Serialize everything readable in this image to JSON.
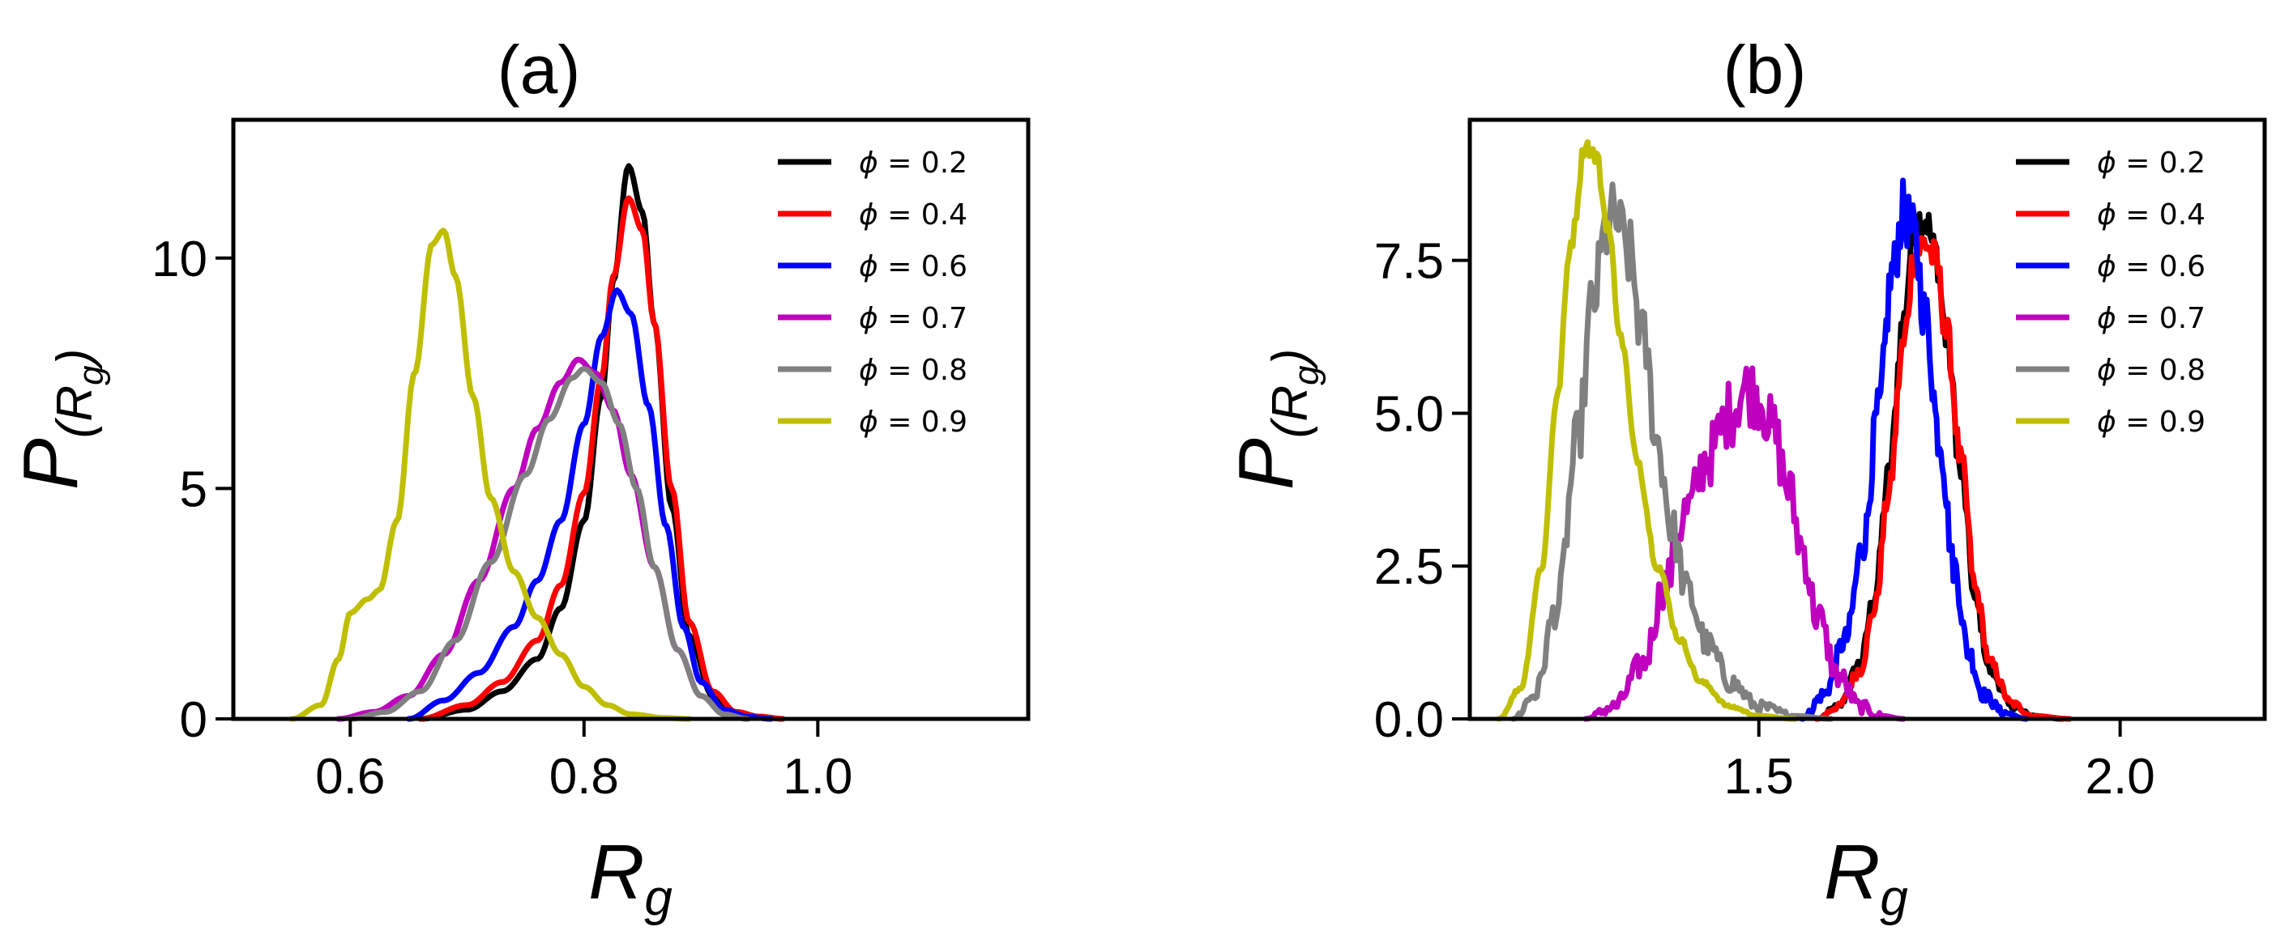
{
  "chart_data": [
    {
      "type": "line",
      "title": "(a)",
      "xlabel": "R",
      "xlabel_sub": "g",
      "ylabel": "P",
      "ylabel_sub": "(R",
      "ylabel_subsub": "g",
      "ylabel_close": ")",
      "xlim": [
        0.5,
        1.18
      ],
      "ylim": [
        0,
        13.0
      ],
      "xticks": [
        0.6,
        0.8,
        1.0
      ],
      "xtick_labels": [
        "0.6",
        "0.8",
        "1.0"
      ],
      "yticks": [
        0,
        5,
        10
      ],
      "ytick_labels": [
        "0",
        "5",
        "10"
      ],
      "legend_position": "top-right",
      "series": [
        {
          "name": "ϕ = 0.2",
          "symbol": "ϕ",
          "value": "= 0.2",
          "color": "#000000",
          "noise": 0,
          "x": [
            0.66,
            0.7,
            0.73,
            0.76,
            0.78,
            0.8,
            0.815,
            0.825,
            0.838,
            0.85,
            0.86,
            0.875,
            0.89,
            0.91,
            0.93,
            0.95,
            0.97
          ],
          "y": [
            0,
            0.2,
            0.6,
            1.3,
            2.4,
            4.3,
            7.0,
            9.5,
            12.0,
            11.0,
            8.6,
            4.6,
            1.8,
            0.5,
            0.15,
            0.05,
            0
          ]
        },
        {
          "name": "ϕ = 0.4",
          "symbol": "ϕ",
          "value": "= 0.4",
          "color": "#ff0000",
          "noise": 0,
          "x": [
            0.66,
            0.7,
            0.73,
            0.76,
            0.78,
            0.8,
            0.815,
            0.825,
            0.838,
            0.85,
            0.86,
            0.875,
            0.89,
            0.91,
            0.93,
            0.95,
            0.97
          ],
          "y": [
            0,
            0.3,
            0.8,
            1.7,
            2.9,
            4.9,
            7.4,
            9.6,
            11.3,
            10.6,
            8.6,
            5.0,
            2.1,
            0.6,
            0.15,
            0.05,
            0
          ]
        },
        {
          "name": "ϕ = 0.6",
          "symbol": "ϕ",
          "value": "= 0.6",
          "color": "#0000ff",
          "noise": 0,
          "x": [
            0.65,
            0.68,
            0.71,
            0.74,
            0.76,
            0.78,
            0.8,
            0.815,
            0.828,
            0.84,
            0.855,
            0.87,
            0.885,
            0.9,
            0.92,
            0.94,
            0.96
          ],
          "y": [
            0,
            0.4,
            1.0,
            2.0,
            3.0,
            4.3,
            6.4,
            8.3,
            9.3,
            8.8,
            6.8,
            4.2,
            2.0,
            0.8,
            0.2,
            0.05,
            0
          ]
        },
        {
          "name": "ϕ = 0.7",
          "symbol": "ϕ",
          "value": "= 0.7",
          "color": "#bf00bf",
          "noise": 0,
          "x": [
            0.59,
            0.62,
            0.65,
            0.68,
            0.71,
            0.74,
            0.76,
            0.78,
            0.795,
            0.81,
            0.825,
            0.84,
            0.86,
            0.88,
            0.9,
            0.92,
            0.94
          ],
          "y": [
            0,
            0.15,
            0.5,
            1.4,
            3.0,
            5.0,
            6.3,
            7.3,
            7.8,
            7.5,
            6.7,
            5.3,
            3.3,
            1.5,
            0.5,
            0.1,
            0
          ]
        },
        {
          "name": "ϕ = 0.8",
          "symbol": "ϕ",
          "value": "= 0.8",
          "color": "#808080",
          "noise": 0,
          "x": [
            0.6,
            0.63,
            0.66,
            0.69,
            0.72,
            0.75,
            0.77,
            0.79,
            0.8,
            0.815,
            0.83,
            0.845,
            0.86,
            0.88,
            0.9,
            0.92,
            0.94
          ],
          "y": [
            0,
            0.15,
            0.6,
            1.7,
            3.4,
            5.3,
            6.5,
            7.4,
            7.6,
            7.3,
            6.4,
            5.0,
            3.3,
            1.5,
            0.5,
            0.1,
            0
          ]
        },
        {
          "name": "ϕ = 0.9",
          "symbol": "ϕ",
          "value": "= 0.9",
          "color": "#bfbf00",
          "noise": 0,
          "x": [
            0.55,
            0.575,
            0.59,
            0.6,
            0.615,
            0.625,
            0.64,
            0.655,
            0.67,
            0.68,
            0.69,
            0.705,
            0.72,
            0.74,
            0.76,
            0.78,
            0.8,
            0.82,
            0.84,
            0.87,
            0.89
          ],
          "y": [
            0,
            0.3,
            1.3,
            2.3,
            2.6,
            2.8,
            4.3,
            7.5,
            10.3,
            10.6,
            9.6,
            7.0,
            4.8,
            3.2,
            2.2,
            1.4,
            0.7,
            0.3,
            0.1,
            0.02,
            0
          ]
        }
      ]
    },
    {
      "type": "line",
      "title": "(b)",
      "xlabel": "R",
      "xlabel_sub": "g",
      "ylabel": "P",
      "ylabel_sub": "(R",
      "ylabel_subsub": "g",
      "ylabel_close": ")",
      "xlim": [
        1.1,
        2.2
      ],
      "ylim": [
        0,
        9.8
      ],
      "xticks": [
        1.5,
        2.0
      ],
      "xtick_labels": [
        "1.5",
        "2.0"
      ],
      "yticks": [
        0.0,
        2.5,
        5.0,
        7.5
      ],
      "ytick_labels": [
        "0.0",
        "2.5",
        "5.0",
        "7.5"
      ],
      "legend_position": "top-right",
      "series": [
        {
          "name": "ϕ = 0.2",
          "symbol": "ϕ",
          "value": "= 0.2",
          "color": "#000000",
          "noise": 0.12,
          "x": [
            1.58,
            1.61,
            1.64,
            1.66,
            1.68,
            1.7,
            1.715,
            1.73,
            1.745,
            1.76,
            1.78,
            1.8,
            1.82,
            1.85,
            1.88,
            1.92
          ],
          "y": [
            0,
            0.2,
            0.9,
            2.0,
            4.0,
            6.5,
            8.1,
            8.2,
            7.6,
            6.2,
            4.0,
            1.9,
            0.8,
            0.2,
            0.05,
            0
          ]
        },
        {
          "name": "ϕ = 0.4",
          "symbol": "ϕ",
          "value": "= 0.4",
          "color": "#ff0000",
          "noise": 0.12,
          "x": [
            1.58,
            1.61,
            1.64,
            1.66,
            1.68,
            1.7,
            1.715,
            1.73,
            1.745,
            1.76,
            1.78,
            1.8,
            1.82,
            1.85,
            1.88,
            1.93
          ],
          "y": [
            0,
            0.2,
            0.8,
            1.8,
            3.7,
            6.1,
            7.6,
            7.8,
            7.5,
            6.3,
            4.2,
            2.1,
            0.9,
            0.25,
            0.05,
            0
          ]
        },
        {
          "name": "ϕ = 0.6",
          "symbol": "ϕ",
          "value": "= 0.6",
          "color": "#0000ff",
          "noise": 0.18,
          "x": [
            1.56,
            1.59,
            1.62,
            1.645,
            1.665,
            1.685,
            1.7,
            1.715,
            1.73,
            1.75,
            1.77,
            1.79,
            1.81,
            1.84,
            1.87
          ],
          "y": [
            0,
            0.4,
            1.3,
            2.9,
            5.0,
            7.3,
            8.3,
            7.9,
            6.6,
            4.6,
            2.5,
            1.1,
            0.4,
            0.1,
            0
          ]
        },
        {
          "name": "ϕ = 0.7",
          "symbol": "ϕ",
          "value": "= 0.7",
          "color": "#bf00bf",
          "noise": 0.25,
          "x": [
            1.26,
            1.3,
            1.34,
            1.37,
            1.4,
            1.43,
            1.46,
            1.48,
            1.5,
            1.52,
            1.54,
            1.56,
            1.58,
            1.61,
            1.64,
            1.67,
            1.7
          ],
          "y": [
            0,
            0.2,
            0.9,
            2.2,
            3.4,
            4.3,
            5.0,
            5.4,
            5.3,
            4.7,
            3.8,
            2.8,
            1.7,
            0.7,
            0.2,
            0.05,
            0
          ]
        },
        {
          "name": "ϕ = 0.8",
          "symbol": "ϕ",
          "value": "= 0.8",
          "color": "#808080",
          "noise": 0.22,
          "x": [
            1.16,
            1.19,
            1.22,
            1.25,
            1.27,
            1.29,
            1.3,
            1.32,
            1.34,
            1.36,
            1.38,
            1.4,
            1.43,
            1.46,
            1.5,
            1.55,
            1.6
          ],
          "y": [
            0,
            0.4,
            1.8,
            4.6,
            6.8,
            8.0,
            8.2,
            7.6,
            6.2,
            4.5,
            3.1,
            2.1,
            1.2,
            0.6,
            0.2,
            0.05,
            0
          ]
        },
        {
          "name": "ϕ = 0.9",
          "symbol": "ϕ",
          "value": "= 0.9",
          "color": "#bfbf00",
          "noise": 0.05,
          "x": [
            1.14,
            1.17,
            1.2,
            1.22,
            1.24,
            1.26,
            1.275,
            1.29,
            1.31,
            1.33,
            1.36,
            1.39,
            1.42,
            1.46,
            1.5,
            1.55
          ],
          "y": [
            0,
            0.5,
            2.5,
            5.2,
            7.8,
            9.4,
            9.2,
            8.1,
            6.2,
            4.3,
            2.5,
            1.3,
            0.6,
            0.2,
            0.05,
            0
          ]
        }
      ]
    }
  ]
}
